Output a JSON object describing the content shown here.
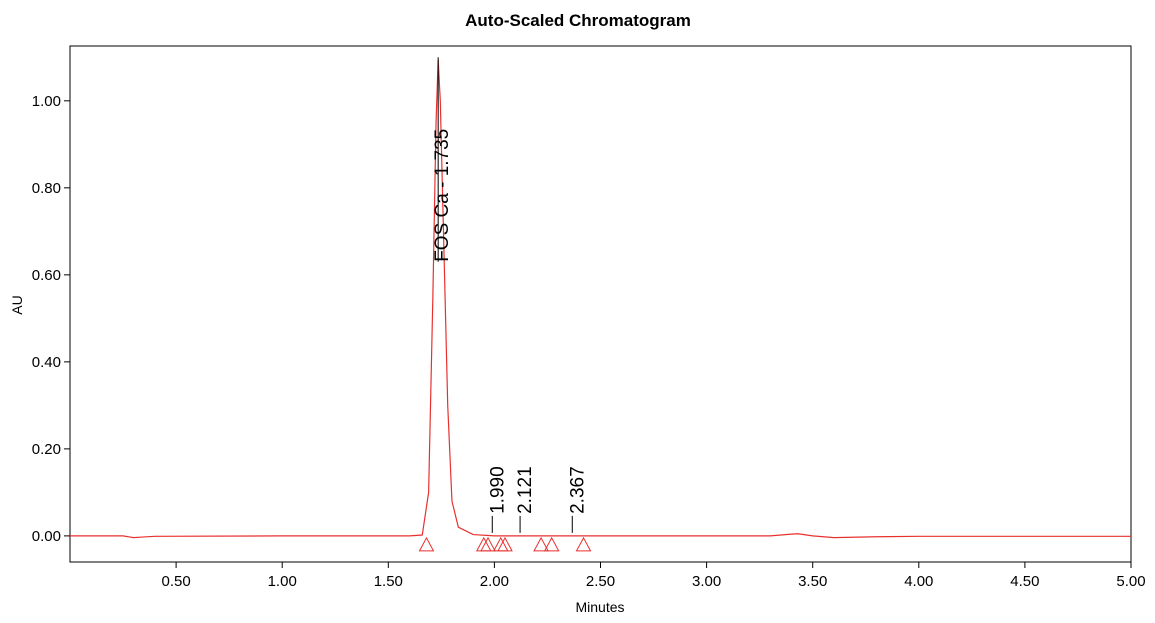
{
  "chart_data": {
    "type": "line",
    "title": "Auto-Scaled Chromatogram",
    "x_label": "Minutes",
    "y_label": "AU",
    "x": [
      0,
      0.25,
      0.3,
      0.33,
      0.4,
      1.0,
      1.6,
      1.66,
      1.69,
      1.71,
      1.725,
      1.735,
      1.745,
      1.76,
      1.78,
      1.8,
      1.83,
      1.9,
      2.0,
      2.5,
      3.3,
      3.4,
      3.43,
      3.5,
      3.6,
      3.8,
      4.0,
      5.0
    ],
    "series": [
      {
        "color": "#e8312f",
        "values": [
          0,
          0,
          -0.004,
          -0.003,
          -0.001,
          0,
          0,
          0.002,
          0.1,
          0.55,
          0.95,
          1.094,
          1.0,
          0.7,
          0.3,
          0.08,
          0.02,
          0.003,
          0,
          0,
          0,
          0.004,
          0.005,
          0,
          -0.004,
          -0.002,
          -0.001,
          -0.001
        ]
      }
    ],
    "xlim": [
      0,
      5
    ],
    "ylim": [
      -0.06,
      1.126
    ],
    "xticks": [
      {
        "value": 0.5,
        "label": "0.50"
      },
      {
        "value": 1,
        "label": "1.00"
      },
      {
        "value": 1.5,
        "label": "1.50"
      },
      {
        "value": 2,
        "label": "2.00"
      },
      {
        "value": 2.5,
        "label": "2.50"
      },
      {
        "value": 3,
        "label": "3.00"
      },
      {
        "value": 3.5,
        "label": "3.50"
      },
      {
        "value": 4,
        "label": "4.00"
      },
      {
        "value": 4.5,
        "label": "4.50"
      },
      {
        "value": 5,
        "label": "5.00"
      }
    ],
    "yticks": [
      {
        "value": 0,
        "label": "0.00"
      },
      {
        "value": 0.2,
        "label": "0.20"
      },
      {
        "value": 0.4,
        "label": "0.40"
      },
      {
        "value": 0.6,
        "label": "0.60"
      },
      {
        "value": 0.8,
        "label": "0.80"
      },
      {
        "value": 1,
        "label": "1.00"
      }
    ],
    "peaks": [
      {
        "x": 1.735,
        "label": "FOS Ca - 1.735"
      },
      {
        "x": 1.99,
        "label": "1.990"
      },
      {
        "x": 2.121,
        "label": "2.121"
      },
      {
        "x": 2.367,
        "label": "2.367"
      }
    ],
    "baseline_markers": [
      1.68,
      1.95,
      1.97,
      2.03,
      2.05,
      2.22,
      2.27,
      2.42
    ],
    "marker_color": "#e8312f"
  }
}
